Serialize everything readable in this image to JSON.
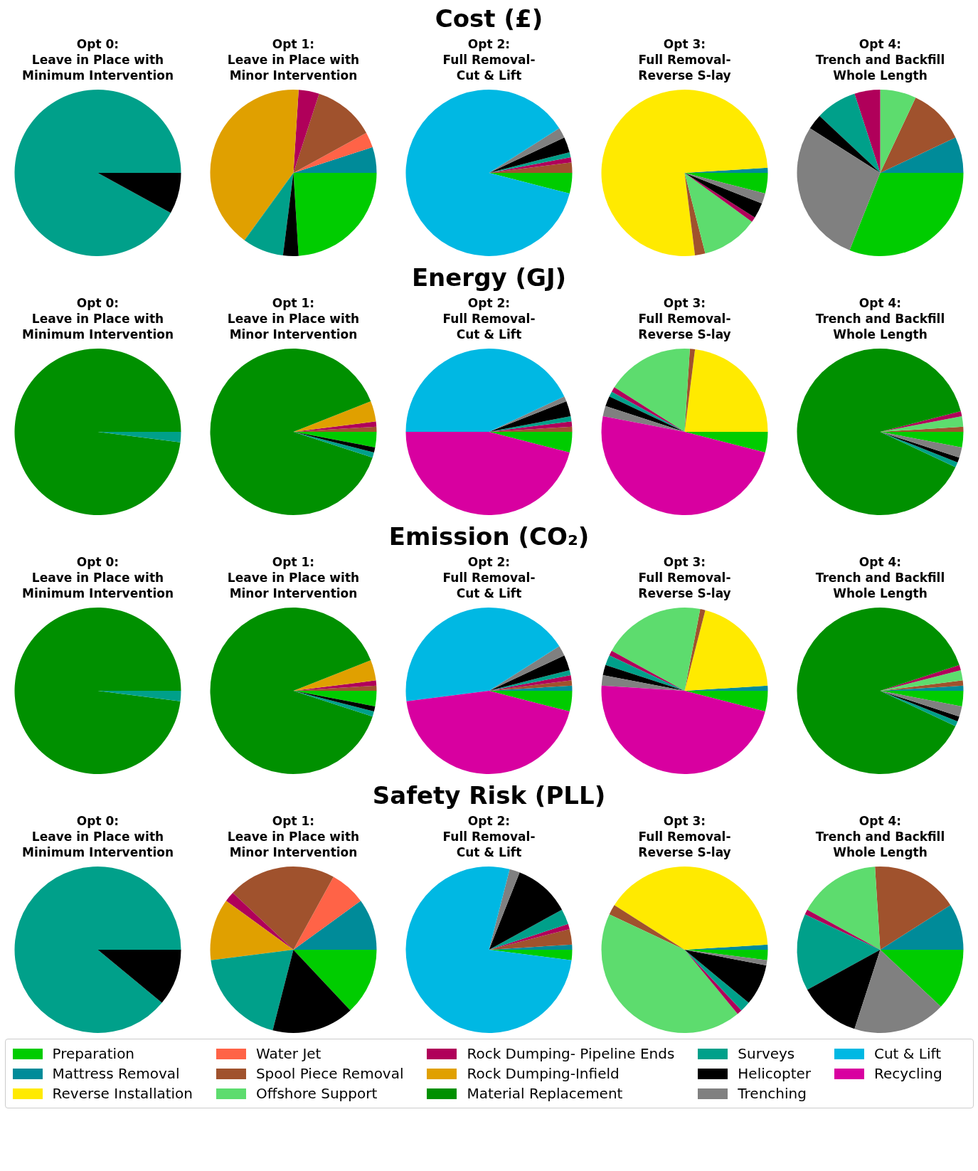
{
  "chart_data": [
    {
      "type": "other",
      "title": "Cost (£)"
    },
    {
      "type": "pie",
      "title": "Opt 0:\nLeave in Place with\nMinimum Intervention",
      "categories": [
        null,
        null,
        null,
        null,
        null,
        null,
        null,
        null,
        null,
        null,
        null,
        null,
        null,
        null
      ],
      "colors": [
        "#00cc00",
        "#008b99",
        "#ffea00",
        "#ff6347",
        "#a0522d",
        "#5ddc6e",
        "#b0005a",
        "#e0a000",
        "#009000",
        "#00a08a",
        "#000000",
        "#808080",
        "#00b8e3",
        "#d800a0"
      ],
      "values": [
        0,
        0,
        0,
        0,
        0,
        0,
        0,
        0,
        0,
        92,
        8,
        0,
        0,
        0
      ]
    },
    {
      "type": "pie",
      "title": "Opt 1:\nLeave in Place with\nMinor Intervention",
      "categories": [
        null,
        null,
        null,
        null,
        null,
        null,
        null,
        null,
        null,
        null,
        null,
        null,
        null,
        null
      ],
      "colors": [
        "#00cc00",
        "#008b99",
        "#ffea00",
        "#ff6347",
        "#a0522d",
        "#5ddc6e",
        "#b0005a",
        "#e0a000",
        "#009000",
        "#00a08a",
        "#000000",
        "#808080",
        "#00b8e3",
        "#d800a0"
      ],
      "values": [
        24,
        5,
        0,
        3,
        12,
        0,
        4,
        41,
        0,
        8,
        3,
        0,
        0,
        0
      ]
    },
    {
      "type": "pie",
      "title": "Opt 2:\nFull Removal-\nCut & Lift",
      "categories": [
        null,
        null,
        null,
        null,
        null,
        null,
        null,
        null,
        null,
        null,
        null,
        null,
        null,
        null
      ],
      "colors": [
        "#00cc00",
        "#008b99",
        "#ffea00",
        "#ff6347",
        "#a0522d",
        "#5ddc6e",
        "#b0005a",
        "#e0a000",
        "#009000",
        "#00a08a",
        "#000000",
        "#808080",
        "#00b8e3",
        "#d800a0"
      ],
      "values": [
        4,
        0,
        0,
        0,
        2,
        0,
        1,
        0,
        0,
        1,
        3,
        2,
        87,
        0
      ]
    },
    {
      "type": "pie",
      "title": "Opt 3:\nFull Removal-\nReverse S-lay",
      "categories": [
        null,
        null,
        null,
        null,
        null,
        null,
        null,
        null,
        null,
        null,
        null,
        null,
        null,
        null
      ],
      "colors": [
        "#00cc00",
        "#008b99",
        "#ffea00",
        "#ff6347",
        "#a0522d",
        "#5ddc6e",
        "#b0005a",
        "#e0a000",
        "#009000",
        "#00a08a",
        "#000000",
        "#808080",
        "#00b8e3",
        "#d800a0"
      ],
      "values": [
        4,
        1,
        76,
        0,
        2,
        11,
        1,
        0,
        0,
        0,
        3,
        2,
        0,
        0
      ]
    },
    {
      "type": "pie",
      "title": "Opt 4:\nTrench and Backfill\nWhole Length",
      "categories": [
        null,
        null,
        null,
        null,
        null,
        null,
        null,
        null,
        null,
        null,
        null,
        null,
        null,
        null
      ],
      "colors": [
        "#00cc00",
        "#008b99",
        "#ffea00",
        "#ff6347",
        "#a0522d",
        "#5ddc6e",
        "#b0005a",
        "#e0a000",
        "#009000",
        "#00a08a",
        "#000000",
        "#808080",
        "#00b8e3",
        "#d800a0"
      ],
      "values": [
        31,
        7,
        0,
        0,
        11,
        7,
        5,
        0,
        0,
        8,
        3,
        28,
        0,
        0
      ]
    },
    {
      "type": "other",
      "title": "Energy (GJ)"
    },
    {
      "type": "pie",
      "title": "Opt 0:\nLeave in Place with\nMinimum Intervention",
      "categories": [
        null,
        null,
        null,
        null,
        null,
        null,
        null,
        null,
        null,
        null,
        null,
        null,
        null,
        null
      ],
      "colors": [
        "#00cc00",
        "#008b99",
        "#ffea00",
        "#ff6347",
        "#a0522d",
        "#5ddc6e",
        "#b0005a",
        "#e0a000",
        "#009000",
        "#00a08a",
        "#000000",
        "#808080",
        "#00b8e3",
        "#d800a0"
      ],
      "values": [
        0,
        0,
        0,
        0,
        0,
        0,
        0,
        0,
        98,
        2,
        0,
        0,
        0,
        0
      ]
    },
    {
      "type": "pie",
      "title": "Opt 1:\nLeave in Place with\nMinor Intervention",
      "categories": [
        null,
        null,
        null,
        null,
        null,
        null,
        null,
        null,
        null,
        null,
        null,
        null,
        null,
        null
      ],
      "colors": [
        "#00cc00",
        "#008b99",
        "#ffea00",
        "#ff6347",
        "#a0522d",
        "#5ddc6e",
        "#b0005a",
        "#e0a000",
        "#009000",
        "#00a08a",
        "#000000",
        "#808080",
        "#00b8e3",
        "#d800a0"
      ],
      "values": [
        3,
        0,
        0,
        0,
        1,
        0,
        1,
        4,
        89,
        1,
        1,
        0,
        0,
        0
      ]
    },
    {
      "type": "pie",
      "title": "Opt 2:\nFull Removal-\nCut & Lift",
      "categories": [
        null,
        null,
        null,
        null,
        null,
        null,
        null,
        null,
        null,
        null,
        null,
        null,
        null,
        null
      ],
      "colors": [
        "#00cc00",
        "#008b99",
        "#ffea00",
        "#ff6347",
        "#a0522d",
        "#5ddc6e",
        "#b0005a",
        "#e0a000",
        "#009000",
        "#00a08a",
        "#000000",
        "#808080",
        "#00b8e3",
        "#d800a0"
      ],
      "values": [
        4,
        0,
        0,
        0,
        1,
        0,
        1,
        0,
        0,
        1,
        3,
        1,
        43,
        46
      ]
    },
    {
      "type": "pie",
      "title": "Opt 3:\nFull Removal-\nReverse S-lay",
      "categories": [
        null,
        null,
        null,
        null,
        null,
        null,
        null,
        null,
        null,
        null,
        null,
        null,
        null,
        null
      ],
      "colors": [
        "#00cc00",
        "#008b99",
        "#ffea00",
        "#ff6347",
        "#a0522d",
        "#5ddc6e",
        "#b0005a",
        "#e0a000",
        "#009000",
        "#00a08a",
        "#000000",
        "#808080",
        "#00b8e3",
        "#d800a0"
      ],
      "values": [
        4,
        0,
        23,
        0,
        1,
        17,
        1,
        0,
        0,
        1,
        2,
        2,
        0,
        49
      ]
    },
    {
      "type": "pie",
      "title": "Opt 4:\nTrench and Backfill\nWhole Length",
      "categories": [
        null,
        null,
        null,
        null,
        null,
        null,
        null,
        null,
        null,
        null,
        null,
        null,
        null,
        null
      ],
      "colors": [
        "#00cc00",
        "#008b99",
        "#ffea00",
        "#ff6347",
        "#a0522d",
        "#5ddc6e",
        "#b0005a",
        "#e0a000",
        "#009000",
        "#00a08a",
        "#000000",
        "#808080",
        "#00b8e3",
        "#d800a0"
      ],
      "values": [
        3,
        0,
        0,
        0,
        1,
        2,
        1,
        0,
        89,
        1,
        1,
        2,
        0,
        0
      ]
    },
    {
      "type": "other",
      "title": "Emission (CO₂)"
    },
    {
      "type": "pie",
      "title": "Opt 0:\nLeave in Place with\nMinimum Intervention",
      "categories": [
        null,
        null,
        null,
        null,
        null,
        null,
        null,
        null,
        null,
        null,
        null,
        null,
        null,
        null
      ],
      "colors": [
        "#00cc00",
        "#008b99",
        "#ffea00",
        "#ff6347",
        "#a0522d",
        "#5ddc6e",
        "#b0005a",
        "#e0a000",
        "#009000",
        "#00a08a",
        "#000000",
        "#808080",
        "#00b8e3",
        "#d800a0"
      ],
      "values": [
        0,
        0,
        0,
        0,
        0,
        0,
        0,
        0,
        98,
        2,
        0,
        0,
        0,
        0
      ]
    },
    {
      "type": "pie",
      "title": "Opt 1:\nLeave in Place with\nMinor Intervention",
      "categories": [
        null,
        null,
        null,
        null,
        null,
        null,
        null,
        null,
        null,
        null,
        null,
        null,
        null,
        null
      ],
      "colors": [
        "#00cc00",
        "#008b99",
        "#ffea00",
        "#ff6347",
        "#a0522d",
        "#5ddc6e",
        "#b0005a",
        "#e0a000",
        "#009000",
        "#00a08a",
        "#000000",
        "#808080",
        "#00b8e3",
        "#d800a0"
      ],
      "values": [
        3,
        0,
        0,
        0,
        1,
        0,
        1,
        4,
        89,
        1,
        1,
        0,
        0,
        0
      ]
    },
    {
      "type": "pie",
      "title": "Opt 2:\nFull Removal-\nCut & Lift",
      "categories": [
        null,
        null,
        null,
        null,
        null,
        null,
        null,
        null,
        null,
        null,
        null,
        null,
        null,
        null
      ],
      "colors": [
        "#00cc00",
        "#008b99",
        "#ffea00",
        "#ff6347",
        "#a0522d",
        "#5ddc6e",
        "#b0005a",
        "#e0a000",
        "#009000",
        "#00a08a",
        "#000000",
        "#808080",
        "#00b8e3",
        "#d800a0"
      ],
      "values": [
        4,
        1,
        0,
        0,
        1,
        0,
        1,
        0,
        0,
        1,
        3,
        2,
        43,
        44
      ]
    },
    {
      "type": "pie",
      "title": "Opt 3:\nFull Removal-\nReverse S-lay",
      "categories": [
        null,
        null,
        null,
        null,
        null,
        null,
        null,
        null,
        null,
        null,
        null,
        null,
        null,
        null
      ],
      "colors": [
        "#00cc00",
        "#008b99",
        "#ffea00",
        "#ff6347",
        "#a0522d",
        "#5ddc6e",
        "#b0005a",
        "#e0a000",
        "#009000",
        "#00a08a",
        "#000000",
        "#808080",
        "#00b8e3",
        "#d800a0"
      ],
      "values": [
        4,
        1,
        20,
        0,
        1,
        20,
        1,
        0,
        0,
        2,
        2,
        2,
        0,
        47
      ]
    },
    {
      "type": "pie",
      "title": "Opt 4:\nTrench and Backfill\nWhole Length",
      "categories": [
        null,
        null,
        null,
        null,
        null,
        null,
        null,
        null,
        null,
        null,
        null,
        null,
        null,
        null
      ],
      "colors": [
        "#00cc00",
        "#008b99",
        "#ffea00",
        "#ff6347",
        "#a0522d",
        "#5ddc6e",
        "#b0005a",
        "#e0a000",
        "#009000",
        "#00a08a",
        "#000000",
        "#808080",
        "#00b8e3",
        "#d800a0"
      ],
      "values": [
        3,
        1,
        0,
        0,
        1,
        2,
        1,
        0,
        88,
        1,
        1,
        2,
        0,
        0
      ]
    },
    {
      "type": "other",
      "title": "Safety Risk (PLL)"
    },
    {
      "type": "pie",
      "title": "Opt 0:\nLeave in Place with\nMinimum Intervention",
      "categories": [
        null,
        null,
        null,
        null,
        null,
        null,
        null,
        null,
        null,
        null,
        null,
        null,
        null,
        null
      ],
      "colors": [
        "#00cc00",
        "#008b99",
        "#ffea00",
        "#ff6347",
        "#a0522d",
        "#5ddc6e",
        "#b0005a",
        "#e0a000",
        "#009000",
        "#00a08a",
        "#000000",
        "#808080",
        "#00b8e3",
        "#d800a0"
      ],
      "values": [
        0,
        0,
        0,
        0,
        0,
        0,
        0,
        0,
        0,
        89,
        11,
        0,
        0,
        0
      ]
    },
    {
      "type": "pie",
      "title": "Opt 1:\nLeave in Place with\nMinor Intervention",
      "categories": [
        null,
        null,
        null,
        null,
        null,
        null,
        null,
        null,
        null,
        null,
        null,
        null,
        null,
        null
      ],
      "colors": [
        "#00cc00",
        "#008b99",
        "#ffea00",
        "#ff6347",
        "#a0522d",
        "#5ddc6e",
        "#b0005a",
        "#e0a000",
        "#009000",
        "#00a08a",
        "#000000",
        "#808080",
        "#00b8e3",
        "#d800a0"
      ],
      "values": [
        13,
        10,
        0,
        7,
        21,
        0,
        2,
        12,
        0,
        19,
        16,
        0,
        0,
        0
      ]
    },
    {
      "type": "pie",
      "title": "Opt 2:\nFull Removal-\nCut & Lift",
      "categories": [
        null,
        null,
        null,
        null,
        null,
        null,
        null,
        null,
        null,
        null,
        null,
        null,
        null,
        null
      ],
      "colors": [
        "#00cc00",
        "#008b99",
        "#ffea00",
        "#ff6347",
        "#a0522d",
        "#5ddc6e",
        "#b0005a",
        "#e0a000",
        "#009000",
        "#00a08a",
        "#000000",
        "#808080",
        "#00b8e3",
        "#d800a0"
      ],
      "values": [
        2,
        1,
        0,
        0,
        3,
        0,
        1,
        0,
        0,
        3,
        11,
        2,
        77,
        0
      ]
    },
    {
      "type": "pie",
      "title": "Opt 3:\nFull Removal-\nReverse S-lay",
      "categories": [
        null,
        null,
        null,
        null,
        null,
        null,
        null,
        null,
        null,
        null,
        null,
        null,
        null,
        null
      ],
      "colors": [
        "#00cc00",
        "#008b99",
        "#ffea00",
        "#ff6347",
        "#a0522d",
        "#5ddc6e",
        "#b0005a",
        "#e0a000",
        "#009000",
        "#00a08a",
        "#000000",
        "#808080",
        "#00b8e3",
        "#d800a0"
      ],
      "values": [
        2,
        1,
        40,
        0,
        2,
        43,
        1,
        0,
        0,
        2,
        8,
        1,
        0,
        0
      ]
    },
    {
      "type": "pie",
      "title": "Opt 4:\nTrench and Backfill\nWhole Length",
      "categories": [
        "Preparation",
        "Mattress Removal",
        "Reverse Installation",
        "Water Jet",
        "Spool Piece Removal",
        "Offshore Support",
        "Rock Dumping- Pipeline Ends",
        "Rock Dumping-Infield",
        "Material Replacement",
        "Surveys",
        "Helicopter",
        "Trenching",
        "Cut & Lift",
        "Recycling"
      ],
      "colors": [
        "#00cc00",
        "#008b99",
        "#ffea00",
        "#ff6347",
        "#a0522d",
        "#5ddc6e",
        "#b0005a",
        "#e0a000",
        "#009000",
        "#00a08a",
        "#000000",
        "#808080",
        "#00b8e3",
        "#d800a0"
      ],
      "values": [
        12,
        9,
        0,
        0,
        17,
        16,
        1,
        0,
        0,
        15,
        12,
        18,
        0,
        0
      ],
      "legend": "bottom"
    }
  ]
}
